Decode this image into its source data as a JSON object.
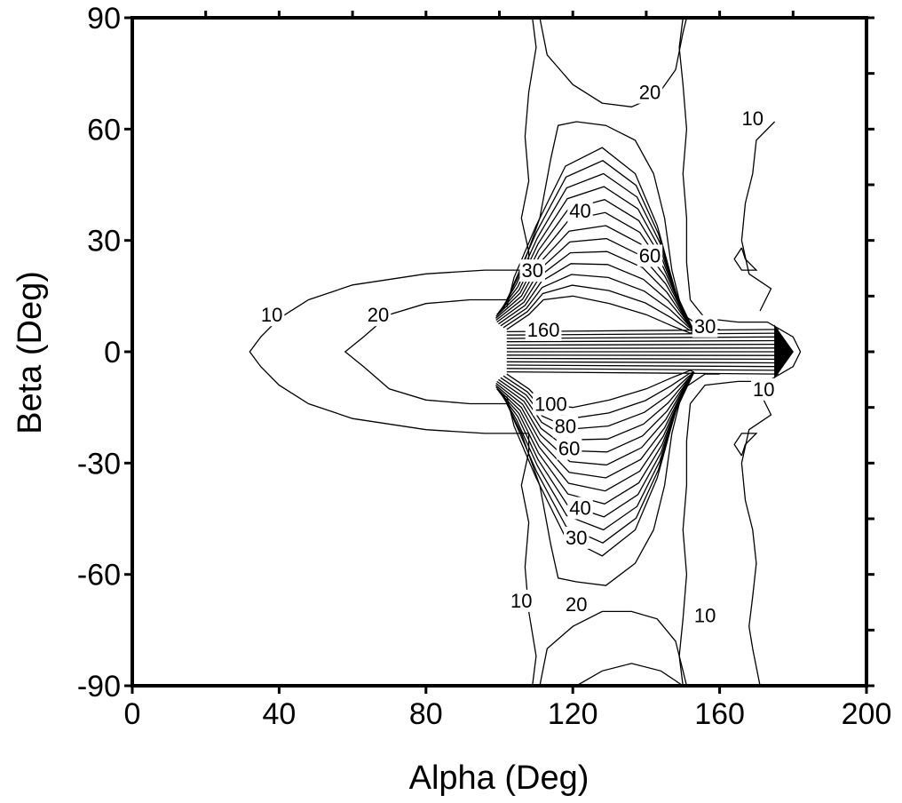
{
  "chart_data": {
    "type": "contour",
    "title": "",
    "xlabel": "Alpha (Deg)",
    "ylabel": "Beta (Deg)",
    "xlim": [
      0,
      200
    ],
    "ylim": [
      -90,
      90
    ],
    "xticks": [
      0,
      40,
      80,
      120,
      160,
      200
    ],
    "yticks": [
      90,
      60,
      30,
      0,
      -30,
      -60,
      -90
    ],
    "grid": false,
    "levels": [
      10,
      20,
      30,
      40,
      50,
      60,
      70,
      80,
      90,
      100,
      110,
      120,
      130,
      140,
      150,
      160
    ],
    "contour_labels": [
      {
        "text": "10",
        "x": 38,
        "y": 10
      },
      {
        "text": "20",
        "x": 67,
        "y": 10
      },
      {
        "text": "30",
        "x": 109,
        "y": 22
      },
      {
        "text": "40",
        "x": 122,
        "y": 38
      },
      {
        "text": "60",
        "x": 141,
        "y": 26
      },
      {
        "text": "20",
        "x": 141,
        "y": 70
      },
      {
        "text": "10",
        "x": 169,
        "y": 63
      },
      {
        "text": "160",
        "x": 112,
        "y": 6
      },
      {
        "text": "30",
        "x": 156,
        "y": 7
      },
      {
        "text": "10",
        "x": 172,
        "y": -10
      },
      {
        "text": "100",
        "x": 114,
        "y": -14
      },
      {
        "text": "80",
        "x": 118,
        "y": -20
      },
      {
        "text": "60",
        "x": 119,
        "y": -26
      },
      {
        "text": "40",
        "x": 122,
        "y": -42
      },
      {
        "text": "30",
        "x": 121,
        "y": -50
      },
      {
        "text": "10",
        "x": 106,
        "y": -67
      },
      {
        "text": "20",
        "x": 121,
        "y": -68
      },
      {
        "text": "10",
        "x": 156,
        "y": -71
      }
    ]
  }
}
